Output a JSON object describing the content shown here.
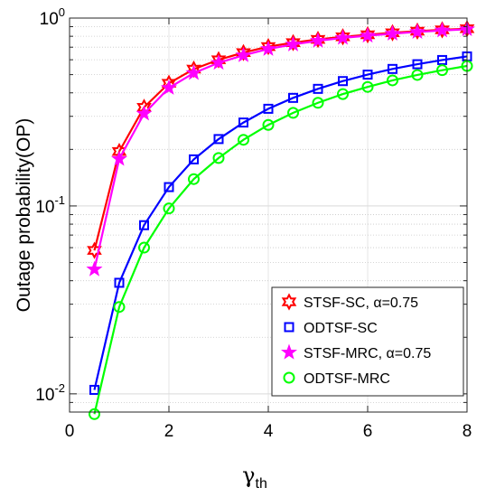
{
  "chart_data": {
    "type": "line",
    "xlabel_main": "γ",
    "xlabel_sub": "th",
    "ylabel": "Outage probability(OP)",
    "xlim": [
      0,
      8
    ],
    "ylim": [
      0.008,
      1
    ],
    "yscale": "log",
    "grid": true,
    "legend_placement": "bottom-right",
    "x_ticks": [
      0,
      2,
      4,
      6,
      8
    ],
    "x_tick_labels": [
      "0",
      "2",
      "4",
      "6",
      "8"
    ],
    "y_ticks": [
      0.01,
      0.1,
      1
    ],
    "y_tick_labels": [
      {
        "base": "10",
        "exp": "-2"
      },
      {
        "base": "10",
        "exp": "-1"
      },
      {
        "base": "10",
        "exp": "0"
      }
    ],
    "x": [
      0.5,
      1,
      1.5,
      2,
      2.5,
      3,
      3.5,
      4,
      4.5,
      5,
      5.5,
      6,
      6.5,
      7,
      7.5,
      8
    ],
    "series": [
      {
        "name": "STSF-SC, α=0.75",
        "color": "#ff0000",
        "marker": "hexagram",
        "values": [
          0.058,
          0.195,
          0.335,
          0.45,
          0.535,
          0.6,
          0.655,
          0.705,
          0.74,
          0.77,
          0.795,
          0.815,
          0.835,
          0.852,
          0.866,
          0.878
        ]
      },
      {
        "name": "ODTSF-SC",
        "color": "#0000ff",
        "marker": "square",
        "values": [
          0.0105,
          0.039,
          0.079,
          0.126,
          0.177,
          0.227,
          0.278,
          0.329,
          0.376,
          0.42,
          0.462,
          0.5,
          0.536,
          0.568,
          0.598,
          0.625
        ]
      },
      {
        "name": "STSF-MRC, α=0.75",
        "color": "#ff00ff",
        "marker": "pentagram",
        "values": [
          0.046,
          0.178,
          0.31,
          0.425,
          0.51,
          0.578,
          0.634,
          0.685,
          0.724,
          0.757,
          0.785,
          0.806,
          0.826,
          0.844,
          0.859,
          0.872
        ]
      },
      {
        "name": "ODTSF-MRC",
        "color": "#00ff00",
        "marker": "circle",
        "values": [
          0.0078,
          0.029,
          0.06,
          0.097,
          0.139,
          0.18,
          0.225,
          0.27,
          0.313,
          0.354,
          0.394,
          0.43,
          0.466,
          0.498,
          0.528,
          0.556
        ]
      }
    ]
  }
}
